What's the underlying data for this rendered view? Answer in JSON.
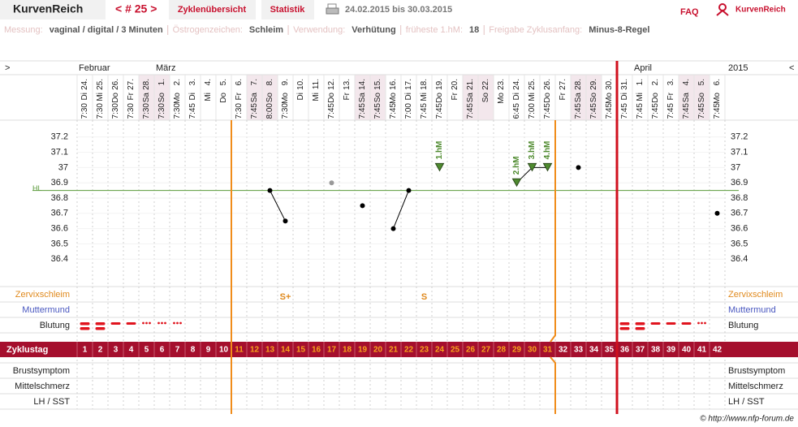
{
  "header": {
    "app_name": "KurvenReich",
    "cycle_nav": "< # 25 >",
    "tabs": [
      "Zyklenübersicht",
      "Statistik"
    ],
    "date_range": "24.02.2015 bis 30.03.2015",
    "faq": "FAQ",
    "logo_text": "KurvenReich"
  },
  "info": [
    {
      "label": "Messung:",
      "value": "vaginal / digital / 3 Minuten"
    },
    {
      "label": "Östrogenzeichen:",
      "value": "Schleim"
    },
    {
      "label": "Verwendung:",
      "value": "Verhütung"
    },
    {
      "label": "früheste 1.hM:",
      "value": "18"
    },
    {
      "label": "Freigabe Zyklusanfang:",
      "value": "Minus-8-Regel"
    }
  ],
  "chart_data": {
    "type": "line",
    "nav_left": ">",
    "nav_right": "<",
    "year": "2015",
    "month_labels": [
      "Februar",
      null,
      null,
      null,
      null,
      "März",
      null,
      null,
      null,
      null,
      null,
      null,
      null,
      null,
      null,
      null,
      null,
      null,
      null,
      null,
      null,
      null,
      null,
      null,
      null,
      null,
      null,
      null,
      null,
      null,
      null,
      null,
      null,
      null,
      null,
      null,
      "April",
      null,
      null,
      null,
      null,
      null
    ],
    "days": [
      "24.",
      "25.",
      "26.",
      "27.",
      "28.",
      "1.",
      "2.",
      "3.",
      "4.",
      "5.",
      "6.",
      "7.",
      "8.",
      "9.",
      "10.",
      "11.",
      "12.",
      "13.",
      "14.",
      "15.",
      "16.",
      "17.",
      "18.",
      "19.",
      "20.",
      "21.",
      "22.",
      "23.",
      "24.",
      "25.",
      "26.",
      "27.",
      "28.",
      "29.",
      "30.",
      "31.",
      "1.",
      "2.",
      "3.",
      "4.",
      "5.",
      "6."
    ],
    "weekdays": [
      "Di",
      "Mi",
      "Do",
      "Fr",
      "Sa",
      "So",
      "Mo",
      "Di",
      "Mi",
      "Do",
      "Fr",
      "Sa",
      "So",
      "Mo",
      "Di",
      "Mi",
      "Do",
      "Fr",
      "Sa",
      "So",
      "Mo",
      "Di",
      "Mi",
      "Do",
      "Fr",
      "Sa",
      "So",
      "Mo",
      "Di",
      "Mi",
      "Do",
      "Fr",
      "Sa",
      "So",
      "Mo",
      "Di",
      "Mi",
      "Do",
      "Fr",
      "Sa",
      "So",
      "Mo"
    ],
    "times": [
      "7:30",
      "7:30",
      "7:30",
      "7:30",
      "7:30",
      "7:30",
      "7:30",
      "7:45",
      null,
      null,
      "7:30",
      "7:45",
      "8:00",
      "7:30",
      null,
      null,
      "7:45",
      null,
      "7:45",
      "7:45",
      "7:45",
      "7:00",
      "7:45",
      "7:45",
      null,
      "7:45",
      null,
      null,
      "6:45",
      "7:00",
      "7:45",
      null,
      "7:45",
      "7:45",
      "7:45",
      "7:45",
      "7:45",
      "7:45",
      "7:45",
      "7:45",
      "7:45",
      "7:45"
    ],
    "ylim": [
      36.3,
      37.3
    ],
    "yticks": [
      36.4,
      36.5,
      36.6,
      36.7,
      36.8,
      36.9,
      37,
      37.1,
      37.2
    ],
    "hl_label": "HL",
    "hl_value": 36.85,
    "hl_color": "#5a9a3a",
    "series": [
      {
        "color": "#000000",
        "values": [
          null,
          null,
          null,
          null,
          null,
          null,
          null,
          null,
          null,
          null,
          null,
          null,
          36.85,
          36.65,
          null,
          null,
          null,
          null,
          36.75,
          null,
          36.6,
          36.85,
          null,
          37.0,
          null,
          null,
          null,
          null,
          36.9,
          37.0,
          37.0,
          null,
          37.0,
          null,
          null,
          null,
          null,
          null,
          null,
          null,
          null,
          36.7
        ]
      },
      {
        "color": "#999999",
        "values": [
          null,
          null,
          null,
          null,
          null,
          null,
          null,
          null,
          null,
          null,
          null,
          null,
          null,
          null,
          null,
          null,
          36.9,
          null,
          null,
          null,
          null,
          null,
          null,
          null,
          null,
          null,
          null,
          null,
          null,
          null,
          null,
          null,
          null,
          null,
          null,
          null,
          null,
          null,
          null,
          null,
          null,
          null
        ]
      }
    ],
    "hm_labels": [
      null,
      null,
      null,
      null,
      null,
      null,
      null,
      null,
      null,
      null,
      null,
      null,
      null,
      null,
      null,
      null,
      null,
      null,
      null,
      null,
      null,
      null,
      null,
      "1.hM",
      null,
      null,
      null,
      null,
      "2.hM",
      "3.hM",
      "4.hM",
      null,
      null,
      null,
      null,
      null,
      null,
      null,
      null,
      null,
      null,
      null
    ],
    "hm_color": "#4e8a2e",
    "row_labels": {
      "cervical": "Zervixschleim",
      "cervix": "Muttermund",
      "bleeding": "Blutung",
      "cycle_day": "Zyklustag"
    },
    "cervical_values": [
      null,
      null,
      null,
      null,
      null,
      null,
      null,
      null,
      null,
      null,
      null,
      null,
      null,
      "S+",
      null,
      null,
      null,
      null,
      null,
      null,
      null,
      null,
      "S",
      null,
      null,
      null,
      null,
      null,
      null,
      null,
      null,
      null,
      null,
      null,
      null,
      null,
      null,
      null,
      null,
      null,
      null,
      null
    ],
    "bleeding": [
      3,
      3,
      2,
      2,
      1,
      1,
      1,
      0,
      0,
      0,
      0,
      0,
      0,
      0,
      0,
      0,
      0,
      0,
      0,
      0,
      0,
      0,
      0,
      0,
      0,
      0,
      0,
      0,
      0,
      0,
      0,
      0,
      0,
      0,
      0,
      3,
      3,
      2,
      2,
      2,
      1,
      0
    ],
    "cycle_days": [
      1,
      2,
      3,
      4,
      5,
      6,
      7,
      8,
      9,
      10,
      11,
      12,
      13,
      14,
      15,
      16,
      17,
      18,
      19,
      20,
      21,
      22,
      23,
      24,
      25,
      26,
      27,
      28,
      29,
      30,
      31,
      32,
      33,
      34,
      35,
      36,
      37,
      38,
      39,
      40,
      41,
      42
    ],
    "fertile_window": [
      11,
      31
    ],
    "new_cycle_start": 36,
    "bottom_rows": [
      "Brustsymptom",
      "Mittelschmerz",
      "LH / SST"
    ],
    "footer": "© http://www.nfp-forum.de"
  }
}
